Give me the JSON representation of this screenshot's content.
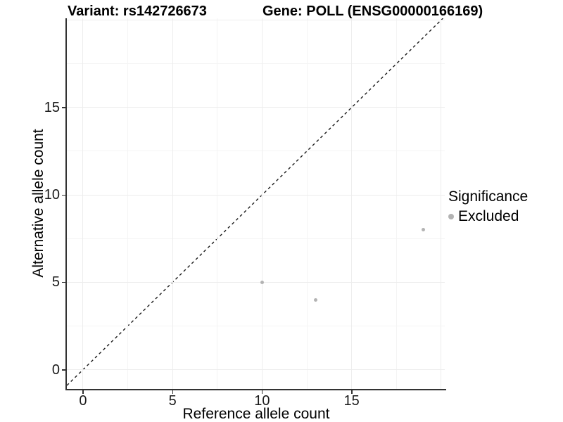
{
  "chart_data": {
    "type": "scatter",
    "title_left": "Variant: rs142726673",
    "title_right": "Gene: POLL (ENSG00000166169)",
    "xlabel": "Reference allele count",
    "ylabel": "Alternative allele count",
    "xlim": [
      -0.9,
      20.2
    ],
    "ylim": [
      -1.1,
      20.1
    ],
    "xticks": [
      0,
      5,
      10,
      15
    ],
    "yticks": [
      0,
      5,
      10,
      15
    ],
    "grid_major": [
      0,
      5,
      10,
      15,
      20
    ],
    "grid_minor": [
      2.5,
      7.5,
      12.5,
      17.5
    ],
    "grid": true,
    "legend_position": "right",
    "series": [
      {
        "name": "Excluded",
        "color": "#b3b3b3",
        "points": [
          {
            "x": 10,
            "y": 5
          },
          {
            "x": 13,
            "y": 4
          },
          {
            "x": 19,
            "y": 8
          }
        ]
      }
    ],
    "identity_line": {
      "equation": "y = x",
      "style": "dashed",
      "color": "#1a1a1a"
    },
    "legend": {
      "title": "Significance",
      "entries": [
        {
          "label": "Excluded",
          "color": "#b3b3b3"
        }
      ]
    }
  },
  "colors": {
    "background": "#ffffff",
    "axis_line": "#333333",
    "tick_text": "#1a1a1a",
    "title_text": "#000000",
    "grid_major": "#ededed",
    "grid_minor": "#f4f4f4",
    "point": "#b3b3b3",
    "identity_line": "#1a1a1a"
  }
}
